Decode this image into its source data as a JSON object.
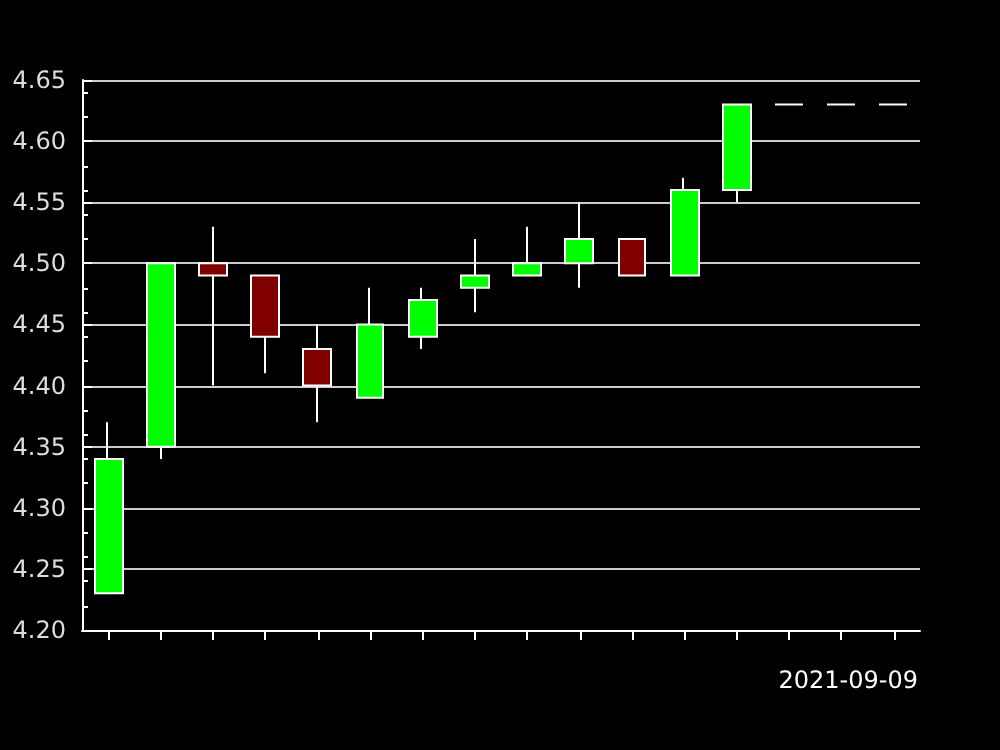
{
  "chart_data": {
    "type": "candlestick",
    "categories": [
      null,
      null,
      null,
      null,
      null,
      null,
      null,
      null,
      null,
      null,
      null,
      null,
      null,
      null,
      null,
      null
    ],
    "ohlc": [
      [
        4.23,
        4.37,
        4.23,
        4.34
      ],
      [
        4.35,
        4.5,
        4.34,
        4.5
      ],
      [
        4.5,
        4.53,
        4.4,
        4.49
      ],
      [
        4.49,
        4.49,
        4.41,
        4.44
      ],
      [
        4.43,
        4.45,
        4.37,
        4.4
      ],
      [
        4.39,
        4.48,
        4.39,
        4.45
      ],
      [
        4.44,
        4.48,
        4.43,
        4.47
      ],
      [
        4.48,
        4.52,
        4.46,
        4.49
      ],
      [
        4.49,
        4.53,
        4.49,
        4.5
      ],
      [
        4.5,
        4.55,
        4.48,
        4.52
      ],
      [
        4.52,
        4.52,
        4.49,
        4.49
      ],
      [
        4.49,
        4.57,
        4.49,
        4.56
      ],
      [
        4.56,
        4.63,
        4.55,
        4.63
      ],
      [
        4.63,
        4.63,
        4.63,
        4.63
      ],
      [
        4.63,
        4.63,
        4.63,
        4.63
      ],
      [
        4.63,
        4.63,
        4.63,
        4.63
      ]
    ],
    "colors": [
      "#00ff00",
      "#00ff00",
      "#800000",
      "#800000",
      "#800000",
      "#00ff00",
      "#00ff00",
      "#00ff00",
      "#00ff00",
      "#00ff00",
      "#800000",
      "#00ff00",
      "#00ff00",
      "#ffffff",
      "#ffffff",
      "#ffffff"
    ],
    "ylim": [
      4.2,
      4.65
    ],
    "yticks": [
      {
        "value": 4.2,
        "label": "4.20"
      },
      {
        "value": 4.25,
        "label": "4.25"
      },
      {
        "value": 4.3,
        "label": "4.30"
      },
      {
        "value": 4.35,
        "label": "4.35"
      },
      {
        "value": 4.4,
        "label": "4.40"
      },
      {
        "value": 4.45,
        "label": "4.45"
      },
      {
        "value": 4.5,
        "label": "4.50"
      },
      {
        "value": 4.55,
        "label": "4.55"
      },
      {
        "value": 4.6,
        "label": "4.60"
      },
      {
        "value": 4.65,
        "label": "4.65"
      }
    ],
    "grid": "y",
    "tick_labels": "y",
    "annotations": [
      "2021-09-09"
    ]
  }
}
